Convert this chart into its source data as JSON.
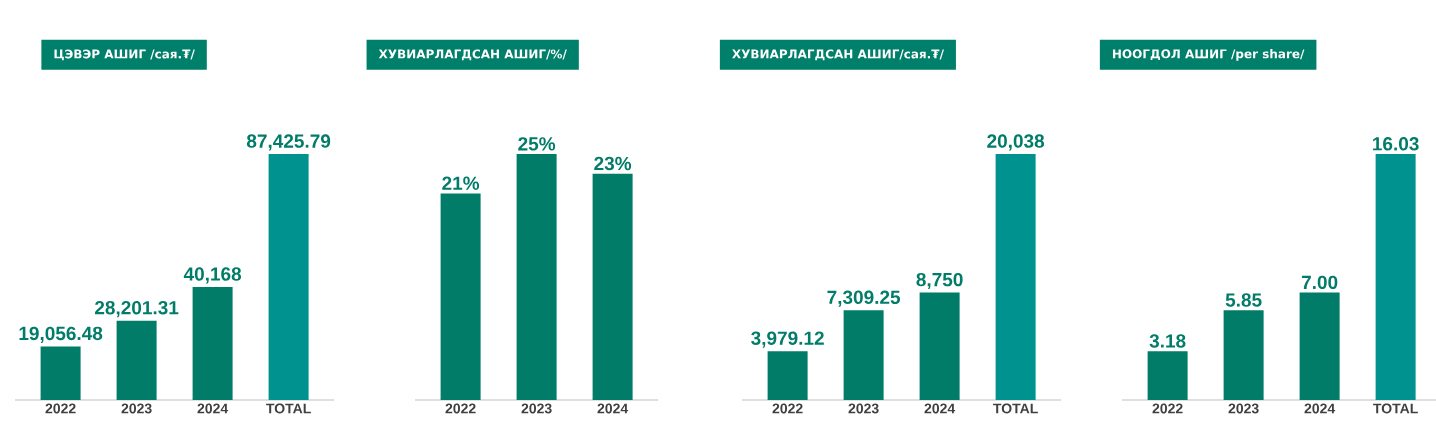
{
  "chart_data": [
    {
      "type": "bar",
      "title": "ЦЭВЭР АШИГ /сая.₮/",
      "categories": [
        "2022",
        "2023",
        "2024",
        "TOTAL"
      ],
      "values": [
        19056.48,
        28201.31,
        40168,
        87425.79
      ],
      "value_labels": [
        "19,056.48",
        "28,201.31",
        "40,168",
        "87,425.79"
      ],
      "colors": [
        "#007c69",
        "#007c69",
        "#007c69",
        "#00928f"
      ]
    },
    {
      "type": "bar",
      "title": "ХУВИАРЛАГДСАН АШИГ/%/",
      "categories": [
        "2022",
        "2023",
        "2024"
      ],
      "values": [
        21,
        25,
        23
      ],
      "value_labels": [
        "21%",
        "25%",
        "23%"
      ],
      "colors": [
        "#007c69",
        "#007c69",
        "#007c69"
      ]
    },
    {
      "type": "bar",
      "title": "ХУВИАРЛАГДСАН АШИГ/сая.₮/",
      "categories": [
        "2022",
        "2023",
        "2024",
        "TOTAL"
      ],
      "values": [
        3979.12,
        7309.25,
        8750,
        20038
      ],
      "value_labels": [
        "3,979.12",
        "7,309.25",
        "8,750",
        "20,038"
      ],
      "colors": [
        "#007c69",
        "#007c69",
        "#007c69",
        "#00928f"
      ]
    },
    {
      "type": "bar",
      "title": "НООГДОЛ АШИГ /per share/",
      "categories": [
        "2022",
        "2023",
        "2024",
        "TOTAL"
      ],
      "values": [
        3.18,
        5.85,
        7.0,
        16.03
      ],
      "value_labels": [
        "3.18",
        "5.85",
        "7.00",
        "16.03"
      ],
      "colors": [
        "#007c69",
        "#007c69",
        "#007c69",
        "#00928f"
      ]
    }
  ]
}
